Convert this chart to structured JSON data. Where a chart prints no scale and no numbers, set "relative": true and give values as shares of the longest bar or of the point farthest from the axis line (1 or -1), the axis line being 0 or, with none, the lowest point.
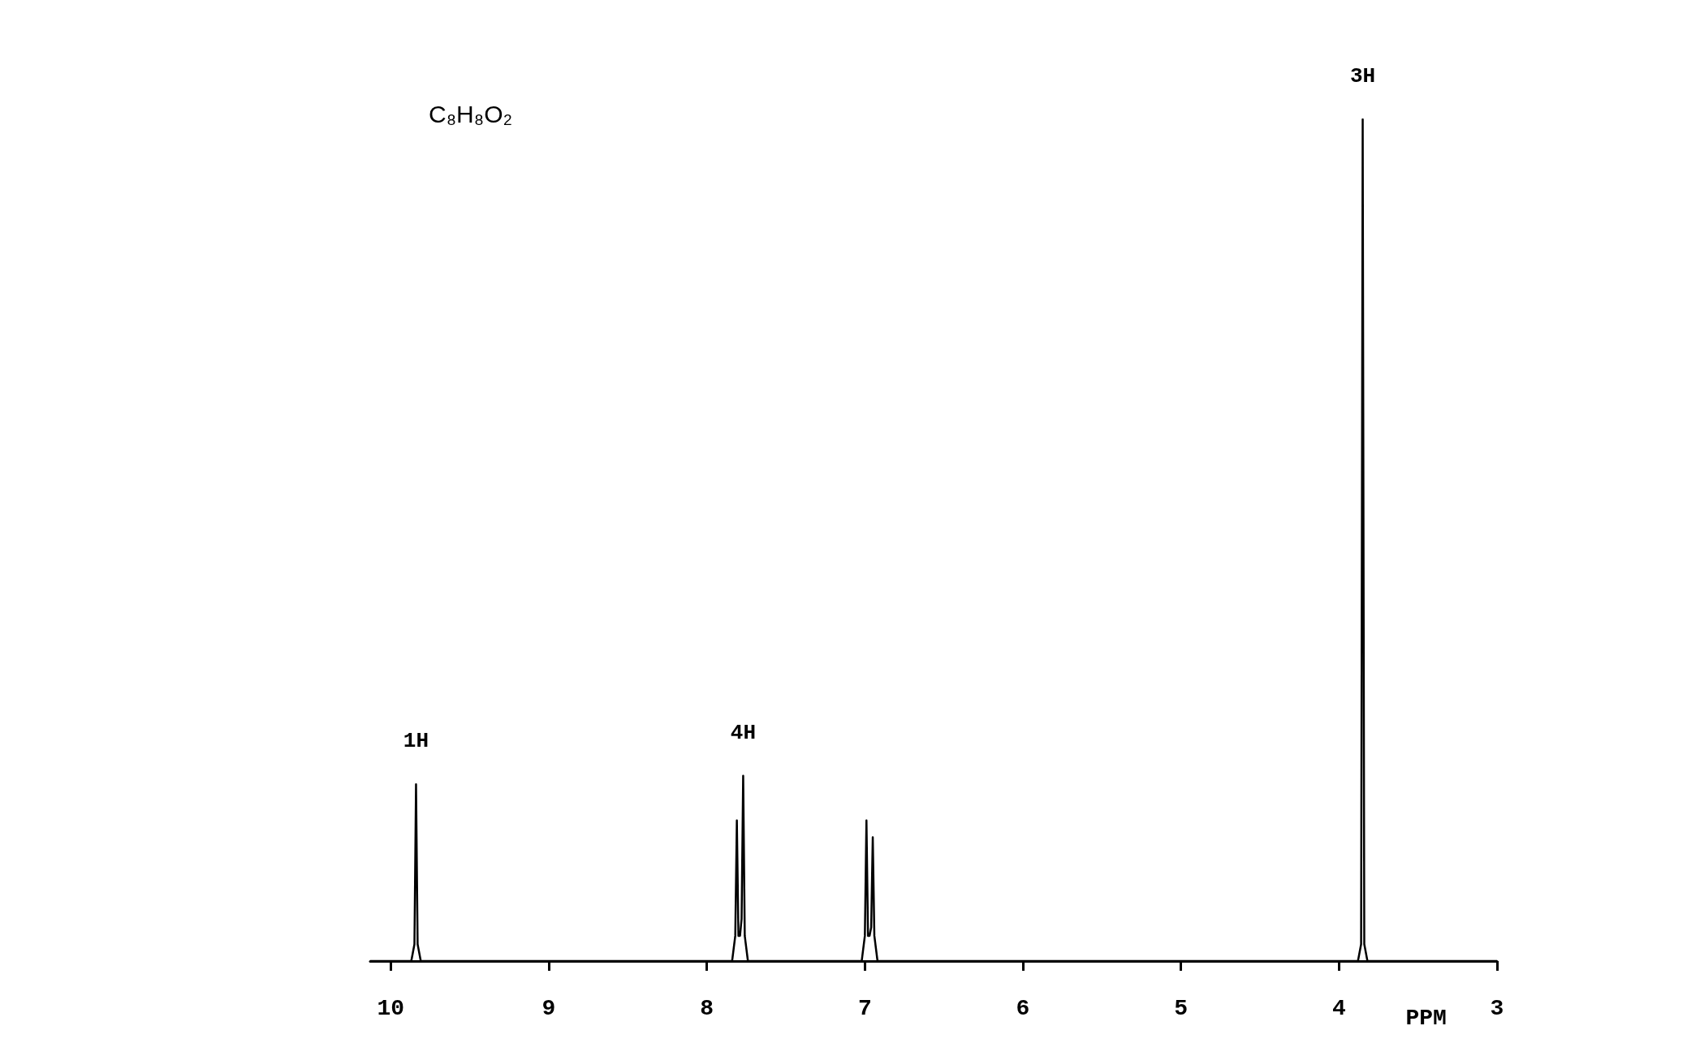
{
  "chart_data": {
    "type": "line",
    "title": "C₈H₈O₂",
    "xlabel": "PPM",
    "relative": true,
    "xlim": [
      10.13,
      3.0
    ],
    "xticks": [
      10,
      9,
      8,
      7,
      6,
      5,
      4,
      3
    ],
    "annotations": [
      {
        "text": "1H",
        "x": 9.84,
        "y": 0.21
      },
      {
        "text": "4H",
        "x": 7.77,
        "y": 0.22
      },
      {
        "text": "3H",
        "x": 3.85,
        "y": 1
      }
    ],
    "series": [
      {
        "color": "#000000",
        "x": [
          10.13,
          9.87,
          9.85,
          9.84,
          9.83,
          9.81,
          7.84,
          7.82,
          7.81,
          7.8,
          7.79,
          7.78,
          7.77,
          7.76,
          7.74,
          7.02,
          7.0,
          6.99,
          6.98,
          6.97,
          6.96,
          6.95,
          6.94,
          6.92,
          3.88,
          3.86,
          3.85,
          3.84,
          3.82,
          3.0
        ],
        "values": [
          0,
          0,
          0.02,
          0.21,
          0.02,
          0,
          0,
          0.03,
          0.167,
          0.03,
          0.03,
          0.05,
          0.22,
          0.03,
          0,
          0,
          0.03,
          0.167,
          0.03,
          0.03,
          0.04,
          0.147,
          0.03,
          0,
          0,
          0.02,
          1,
          0.02,
          0,
          0
        ]
      }
    ],
    "marker": "none",
    "line_style": "solid"
  }
}
